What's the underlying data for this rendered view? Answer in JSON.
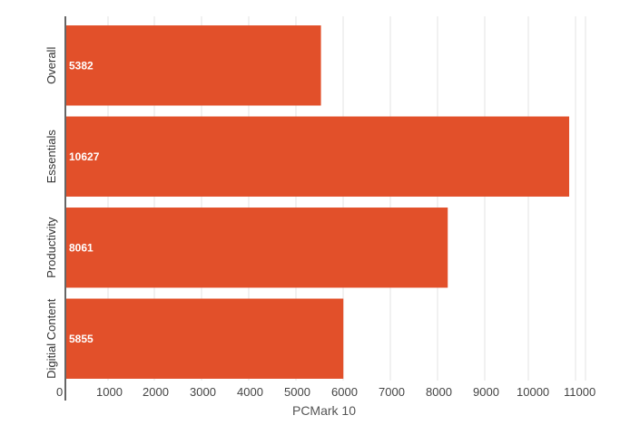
{
  "chart_data": {
    "type": "bar",
    "orientation": "horizontal",
    "categories": [
      "Overall",
      "Essentials",
      "Productivity",
      "Digitial Content"
    ],
    "values": [
      5382,
      10627,
      8061,
      5855
    ],
    "data_labels": [
      "5382",
      "10627",
      "8061",
      "5855"
    ],
    "xlabel": "PCMark 10",
    "ylabel": "",
    "xlim": [
      0,
      11000
    ],
    "x_ticks": [
      "0",
      "1000",
      "2000",
      "3000",
      "4000",
      "5000",
      "6000",
      "7000",
      "8000",
      "9000",
      "10000",
      "11000"
    ],
    "bar_color": "#e2502a",
    "grid": true
  }
}
